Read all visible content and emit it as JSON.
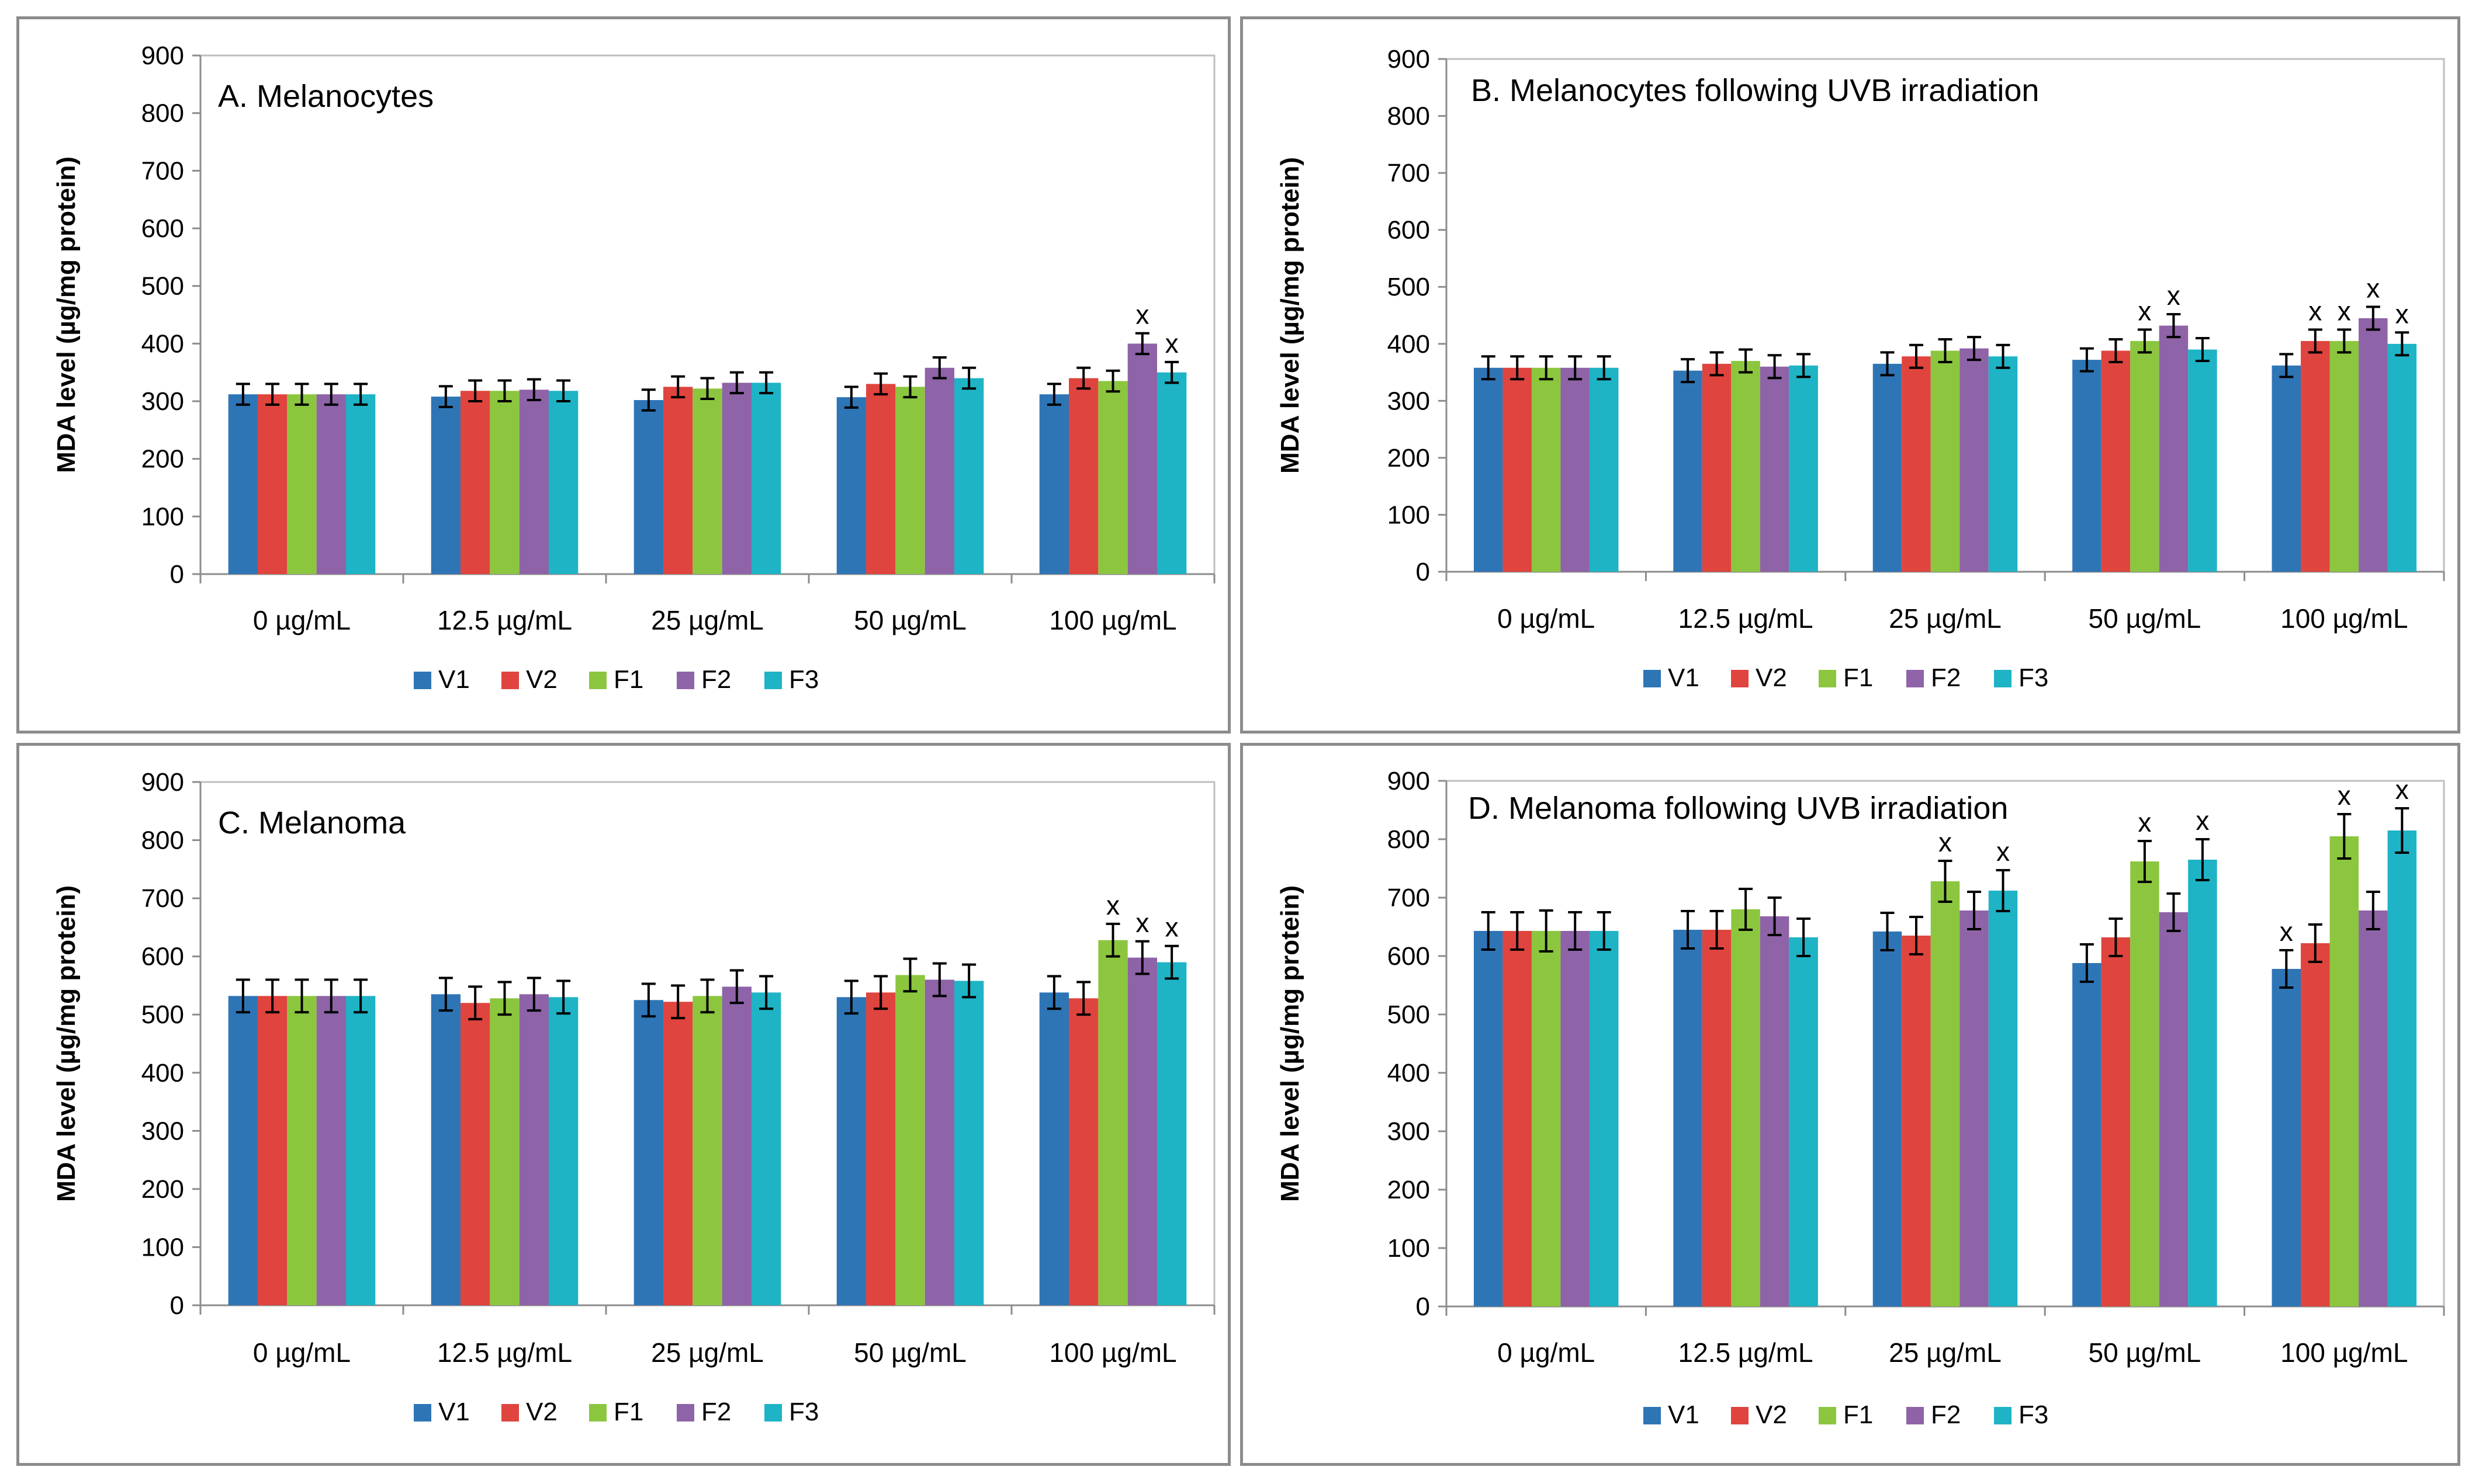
{
  "colors": {
    "V1": "#2e75b6",
    "V2": "#e0443e",
    "F1": "#8cc63f",
    "F2": "#8e63a7",
    "F3": "#1fb3c6"
  },
  "chart_data": [
    {
      "id": "A",
      "type": "bar",
      "title": "A. Melanocytes",
      "ylabel": "MDA level  (µg/mg protein)",
      "xlabel": "",
      "ylim": [
        0,
        900
      ],
      "yticks": [
        0,
        100,
        200,
        300,
        400,
        500,
        600,
        700,
        800,
        900
      ],
      "categories": [
        "0 µg/mL",
        "12.5 µg/mL",
        "25 µg/mL",
        "50 µg/mL",
        "100 µg/mL"
      ],
      "series": [
        {
          "name": "V1",
          "values": [
            312,
            308,
            302,
            307,
            312
          ],
          "errors": [
            18,
            18,
            18,
            18,
            18
          ],
          "sig": [
            false,
            false,
            false,
            false,
            false
          ]
        },
        {
          "name": "V2",
          "values": [
            312,
            318,
            325,
            330,
            340
          ],
          "errors": [
            18,
            18,
            18,
            18,
            18
          ],
          "sig": [
            false,
            false,
            false,
            false,
            false
          ]
        },
        {
          "name": "F1",
          "values": [
            312,
            318,
            322,
            325,
            335
          ],
          "errors": [
            18,
            18,
            18,
            18,
            18
          ],
          "sig": [
            false,
            false,
            false,
            false,
            false
          ]
        },
        {
          "name": "F2",
          "values": [
            312,
            320,
            332,
            358,
            400
          ],
          "errors": [
            18,
            18,
            18,
            18,
            18
          ],
          "sig": [
            false,
            false,
            false,
            false,
            true
          ]
        },
        {
          "name": "F3",
          "values": [
            312,
            318,
            332,
            340,
            350
          ],
          "errors": [
            18,
            18,
            18,
            18,
            18
          ],
          "sig": [
            false,
            false,
            false,
            false,
            true
          ]
        }
      ],
      "sig_label": "x",
      "legend": "bottom"
    },
    {
      "id": "B",
      "type": "bar",
      "title": "B. Melanocytes following UVB irradiation",
      "ylabel": "MDA level  (µg/mg protein)",
      "xlabel": "",
      "ylim": [
        0,
        900
      ],
      "yticks": [
        0,
        100,
        200,
        300,
        400,
        500,
        600,
        700,
        800,
        900
      ],
      "categories": [
        "0 µg/mL",
        "12.5 µg/mL",
        "25 µg/mL",
        "50 µg/mL",
        "100 µg/mL"
      ],
      "series": [
        {
          "name": "V1",
          "values": [
            358,
            353,
            365,
            372,
            362
          ],
          "errors": [
            20,
            20,
            20,
            20,
            20
          ],
          "sig": [
            false,
            false,
            false,
            false,
            false
          ]
        },
        {
          "name": "V2",
          "values": [
            358,
            365,
            378,
            388,
            405
          ],
          "errors": [
            20,
            20,
            20,
            20,
            20
          ],
          "sig": [
            false,
            false,
            false,
            false,
            true
          ]
        },
        {
          "name": "F1",
          "values": [
            358,
            370,
            388,
            405,
            405
          ],
          "errors": [
            20,
            20,
            20,
            20,
            20
          ],
          "sig": [
            false,
            false,
            false,
            true,
            true
          ]
        },
        {
          "name": "F2",
          "values": [
            358,
            360,
            392,
            432,
            445
          ],
          "errors": [
            20,
            20,
            20,
            20,
            20
          ],
          "sig": [
            false,
            false,
            false,
            true,
            true
          ]
        },
        {
          "name": "F3",
          "values": [
            358,
            362,
            378,
            390,
            400
          ],
          "errors": [
            20,
            20,
            20,
            20,
            20
          ],
          "sig": [
            false,
            false,
            false,
            false,
            true
          ]
        }
      ],
      "sig_label": "x",
      "legend": "bottom"
    },
    {
      "id": "C",
      "type": "bar",
      "title": "C. Melanoma",
      "ylabel": "MDA level  (µg/mg protein)",
      "xlabel": "",
      "ylim": [
        0,
        900
      ],
      "yticks": [
        0,
        100,
        200,
        300,
        400,
        500,
        600,
        700,
        800,
        900
      ],
      "categories": [
        "0 µg/mL",
        "12.5 µg/mL",
        "25 µg/mL",
        "50 µg/mL",
        "100 µg/mL"
      ],
      "series": [
        {
          "name": "V1",
          "values": [
            532,
            535,
            525,
            530,
            538
          ],
          "errors": [
            28,
            28,
            28,
            28,
            28
          ],
          "sig": [
            false,
            false,
            false,
            false,
            false
          ]
        },
        {
          "name": "V2",
          "values": [
            532,
            520,
            522,
            538,
            528
          ],
          "errors": [
            28,
            28,
            28,
            28,
            28
          ],
          "sig": [
            false,
            false,
            false,
            false,
            false
          ]
        },
        {
          "name": "F1",
          "values": [
            532,
            528,
            532,
            568,
            628
          ],
          "errors": [
            28,
            28,
            28,
            28,
            28
          ],
          "sig": [
            false,
            false,
            false,
            false,
            true
          ]
        },
        {
          "name": "F2",
          "values": [
            532,
            535,
            548,
            560,
            598
          ],
          "errors": [
            28,
            28,
            28,
            28,
            28
          ],
          "sig": [
            false,
            false,
            false,
            false,
            true
          ]
        },
        {
          "name": "F3",
          "values": [
            532,
            530,
            538,
            558,
            590
          ],
          "errors": [
            28,
            28,
            28,
            28,
            28
          ],
          "sig": [
            false,
            false,
            false,
            false,
            true
          ]
        }
      ],
      "sig_label": "x",
      "legend": "bottom"
    },
    {
      "id": "D",
      "type": "bar",
      "title": "D. Melanoma following UVB irradiation",
      "ylabel": "MDA level (µg/mg protein)",
      "xlabel": "",
      "ylim": [
        0,
        900
      ],
      "yticks": [
        0,
        100,
        200,
        300,
        400,
        500,
        600,
        700,
        800,
        900
      ],
      "categories": [
        "0 µg/mL",
        "12.5 µg/mL",
        "25 µg/mL",
        "50 µg/mL",
        "100 µg/mL"
      ],
      "series": [
        {
          "name": "V1",
          "values": [
            643,
            645,
            642,
            588,
            578
          ],
          "errors": [
            32,
            32,
            32,
            32,
            32
          ],
          "sig": [
            false,
            false,
            false,
            false,
            true
          ]
        },
        {
          "name": "V2",
          "values": [
            643,
            645,
            635,
            632,
            622
          ],
          "errors": [
            32,
            32,
            32,
            32,
            32
          ],
          "sig": [
            false,
            false,
            false,
            false,
            false
          ]
        },
        {
          "name": "F1",
          "values": [
            643,
            680,
            728,
            762,
            805
          ],
          "errors": [
            35,
            35,
            35,
            35,
            38
          ],
          "sig": [
            false,
            false,
            true,
            true,
            true
          ]
        },
        {
          "name": "F2",
          "values": [
            643,
            668,
            678,
            675,
            678
          ],
          "errors": [
            32,
            32,
            32,
            32,
            32
          ],
          "sig": [
            false,
            false,
            false,
            false,
            false
          ]
        },
        {
          "name": "F3",
          "values": [
            643,
            632,
            712,
            765,
            815
          ],
          "errors": [
            32,
            32,
            35,
            35,
            38
          ],
          "sig": [
            false,
            false,
            true,
            true,
            true
          ]
        }
      ],
      "sig_label": "x",
      "legend": "bottom"
    }
  ]
}
